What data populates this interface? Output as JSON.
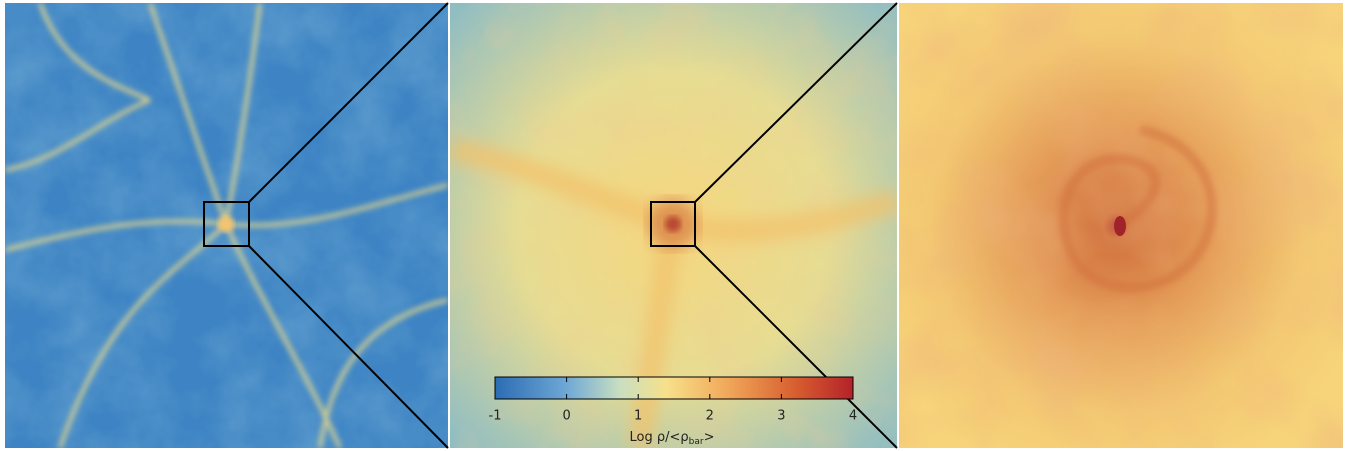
{
  "colorbar": {
    "lim": [
      -1,
      4
    ],
    "ticks": [
      -1,
      0,
      1,
      2,
      3,
      4
    ],
    "label": {
      "text": "Log ρ/<ρ",
      "sub": "bar",
      "end": ">"
    }
  }
}
